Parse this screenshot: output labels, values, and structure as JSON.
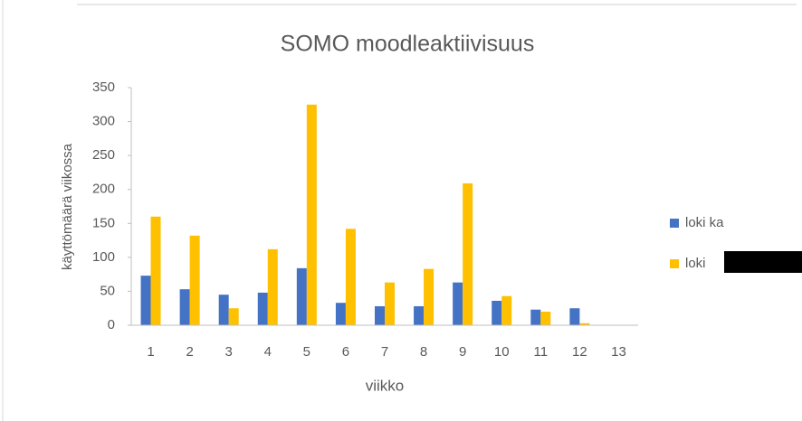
{
  "chart_data": {
    "type": "bar",
    "title": "SOMO moodleaktiivisuus",
    "x_label": "viikko",
    "y_label": "käyttömäärä viikossa",
    "categories": [
      "1",
      "2",
      "3",
      "4",
      "5",
      "6",
      "7",
      "8",
      "9",
      "10",
      "11",
      "12",
      "13"
    ],
    "series": [
      {
        "name": "loki ka",
        "color": "#4472c4",
        "values": [
          73,
          53,
          45,
          48,
          84,
          33,
          28,
          28,
          63,
          36,
          23,
          25,
          0
        ]
      },
      {
        "name": "loki",
        "color": "#ffc000",
        "values": [
          160,
          132,
          25,
          112,
          325,
          142,
          63,
          83,
          209,
          43,
          20,
          3,
          0
        ]
      }
    ],
    "ylim": [
      0,
      350
    ],
    "yticks": [
      0,
      50,
      100,
      150,
      200,
      250,
      300,
      350
    ],
    "grid": false,
    "legend": "right"
  }
}
